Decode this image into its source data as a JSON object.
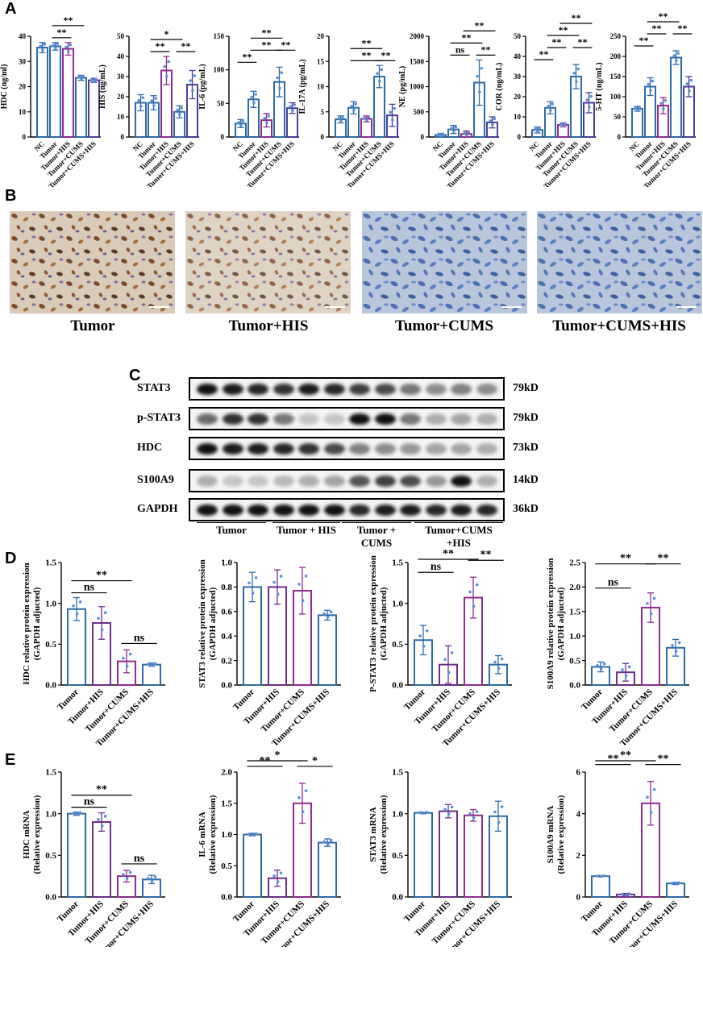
{
  "panels": {
    "A": "A",
    "B": "B",
    "C": "C",
    "D": "D",
    "E": "E"
  },
  "colors": {
    "blue": "#2E6AA6",
    "purple": "#7B2D8E",
    "pink": "#A02B8C",
    "indigo": "#4B3C99",
    "dot": "#5B8ED6"
  },
  "section_A": {
    "groups": [
      "NC",
      "Tumor",
      "Tumor+HIS",
      "Tumor+CUMS",
      "Tumor+CUMS+HIS"
    ],
    "colors": [
      "#2E6AA6",
      "#2E6AA6",
      "#8E2D8E",
      "#2E6AA6",
      "#4B3C99"
    ]
  },
  "section_DE": {
    "groups": [
      "Tumor",
      "Tumor+HIS",
      "Tumor+CUMS",
      "Tumor+CUMS+HIS"
    ],
    "colors": [
      "#2E6AA6",
      "#6B2E8E",
      "#8E2D8E",
      "#2E6AA6"
    ]
  },
  "chart_data": [
    {
      "type": "bar",
      "panel": "A",
      "ylabel": "HDC (ng/ml)",
      "ylim": [
        0,
        40
      ],
      "ticks": [
        0,
        10,
        20,
        30,
        40
      ],
      "values": [
        35.5,
        36,
        35,
        23.5,
        22.5
      ],
      "errors": [
        2,
        1.5,
        2.5,
        1,
        0.8
      ],
      "sig": [
        {
          "a": 1,
          "b": 2,
          "label": "**",
          "level": 1
        },
        {
          "a": 1,
          "b": 3,
          "label": "**",
          "level": 2
        }
      ]
    },
    {
      "type": "bar",
      "panel": "A",
      "ylabel": "HIS (ng/mL)",
      "ylim": [
        0,
        50
      ],
      "ticks": [
        0,
        10,
        20,
        30,
        40,
        50
      ],
      "values": [
        17,
        17,
        33,
        12.5,
        26
      ],
      "errors": [
        4,
        3.5,
        7,
        3,
        7
      ],
      "sig": [
        {
          "a": 1,
          "b": 2,
          "label": "**",
          "level": 1
        },
        {
          "a": 3,
          "b": 4,
          "label": "**",
          "level": 1
        },
        {
          "a": 1,
          "b": 3,
          "label": "*",
          "level": 2
        }
      ]
    },
    {
      "type": "bar",
      "panel": "A",
      "ylabel": "IL-6 (pg/mL)",
      "ylim": [
        0,
        150
      ],
      "ticks": [
        0,
        50,
        100,
        150
      ],
      "values": [
        20,
        56,
        25,
        82,
        43
      ],
      "errors": [
        6,
        12,
        10,
        22,
        8
      ],
      "sig": [
        {
          "a": 0,
          "b": 1,
          "label": "**",
          "level": 1
        },
        {
          "a": 1,
          "b": 3,
          "label": "**",
          "level": 2
        },
        {
          "a": 3,
          "b": 4,
          "label": "**",
          "level": 2
        },
        {
          "a": 1,
          "b": 3,
          "label": "**",
          "level": 3
        }
      ]
    },
    {
      "type": "bar",
      "panel": "A",
      "ylabel": "IL-17A (pg/mL)",
      "ylim": [
        0,
        20
      ],
      "ticks": [
        0,
        5,
        10,
        15,
        20
      ],
      "values": [
        3.5,
        5.8,
        3.6,
        12,
        4.3
      ],
      "errors": [
        0.7,
        1.2,
        0.6,
        2.2,
        2.2
      ],
      "sig": [
        {
          "a": 1,
          "b": 3,
          "label": "**",
          "level": 1
        },
        {
          "a": 3,
          "b": 4,
          "label": "**",
          "level": 1
        },
        {
          "a": 1,
          "b": 3,
          "label": "**",
          "level": 2
        }
      ]
    },
    {
      "type": "bar",
      "panel": "A",
      "ylabel": "NE (pg/mL)",
      "ylim": [
        0,
        2000
      ],
      "ticks": [
        0,
        500,
        1000,
        1500,
        2000
      ],
      "values": [
        40,
        150,
        60,
        1080,
        290
      ],
      "errors": [
        30,
        80,
        60,
        450,
        110
      ],
      "sig": [
        {
          "a": 1,
          "b": 2,
          "label": "ns",
          "level": 1
        },
        {
          "a": 3,
          "b": 4,
          "label": "**",
          "level": 1
        },
        {
          "a": 1,
          "b": 3,
          "label": "**",
          "level": 2
        },
        {
          "a": 2,
          "b": 4,
          "label": "**",
          "level": 3
        }
      ]
    },
    {
      "type": "bar",
      "panel": "A",
      "ylabel": "COR (ng/mL)",
      "ylim": [
        0,
        50
      ],
      "ticks": [
        0,
        10,
        20,
        30,
        40,
        50
      ],
      "values": [
        3.5,
        14.5,
        6,
        30,
        17
      ],
      "errors": [
        1.5,
        3,
        1,
        6,
        5
      ],
      "sig": [
        {
          "a": 0,
          "b": 1,
          "label": "**",
          "level": 1
        },
        {
          "a": 1,
          "b": 2,
          "label": "**",
          "level": 2
        },
        {
          "a": 3,
          "b": 4,
          "label": "**",
          "level": 2
        },
        {
          "a": 1,
          "b": 3,
          "label": "**",
          "level": 3
        },
        {
          "a": 2,
          "b": 4,
          "label": "**",
          "level": 4
        }
      ]
    },
    {
      "type": "bar",
      "panel": "A",
      "ylabel": "5-HT (ng/mL)",
      "ylim": [
        0,
        250
      ],
      "ticks": [
        0,
        50,
        100,
        150,
        200,
        250
      ],
      "values": [
        70,
        125,
        78,
        197,
        125
      ],
      "errors": [
        6,
        22,
        20,
        17,
        25
      ],
      "sig": [
        {
          "a": 0,
          "b": 1,
          "label": "**",
          "level": 1
        },
        {
          "a": 1,
          "b": 2,
          "label": "**",
          "level": 2
        },
        {
          "a": 3,
          "b": 4,
          "label": "**",
          "level": 2
        },
        {
          "a": 1,
          "b": 3,
          "label": "**",
          "level": 3
        }
      ]
    },
    {
      "type": "bar",
      "panel": "D",
      "ylabel": "HDC relative protein expression",
      "ylabel2": "(GAPDH adjucted)",
      "ylim": [
        0,
        1.5
      ],
      "ticks": [
        0.0,
        0.5,
        1.0,
        1.5
      ],
      "values": [
        0.93,
        0.76,
        0.29,
        0.25
      ],
      "errors": [
        0.14,
        0.2,
        0.14,
        0.02
      ],
      "sig": [
        {
          "a": 0,
          "b": 1,
          "label": "ns",
          "level": 1
        },
        {
          "a": 2,
          "b": 3,
          "label": "ns",
          "level": 0
        },
        {
          "a": 0,
          "b": 2,
          "label": "**",
          "level": 2
        }
      ]
    },
    {
      "type": "bar",
      "panel": "D",
      "ylabel": "STAT3 relative protein expression",
      "ylabel2": "(GAPDH adjucted)",
      "ylim": [
        0,
        1.0
      ],
      "ticks": [
        0.0,
        0.2,
        0.4,
        0.6,
        0.8,
        1.0
      ],
      "values": [
        0.8,
        0.8,
        0.77,
        0.57
      ],
      "errors": [
        0.12,
        0.14,
        0.19,
        0.04
      ],
      "sig": []
    },
    {
      "type": "bar",
      "panel": "D",
      "ylabel": "P-STAT3 relative protein expression",
      "ylabel2": "(GAPDH adjucted)",
      "ylim": [
        0,
        1.5
      ],
      "ticks": [
        0.0,
        0.5,
        1.0,
        1.5
      ],
      "values": [
        0.55,
        0.25,
        1.07,
        0.25
      ],
      "errors": [
        0.18,
        0.23,
        0.25,
        0.11
      ],
      "sig": [
        {
          "a": 0,
          "b": 1,
          "label": "ns",
          "level": 1
        },
        {
          "a": 2,
          "b": 3,
          "label": "**",
          "level": 2
        },
        {
          "a": 0,
          "b": 2,
          "label": "**",
          "level": 3
        }
      ]
    },
    {
      "type": "bar",
      "panel": "D",
      "ylabel": "S100A9 relative protein expression",
      "ylabel2": "(GAPDH adjucted)",
      "ylim": [
        0,
        2.5
      ],
      "ticks": [
        0.0,
        0.5,
        1.0,
        1.5,
        2.0,
        2.5
      ],
      "values": [
        0.37,
        0.26,
        1.58,
        0.76
      ],
      "errors": [
        0.1,
        0.18,
        0.3,
        0.17
      ],
      "sig": [
        {
          "a": 0,
          "b": 1,
          "label": "ns",
          "level": 1
        },
        {
          "a": 0,
          "b": 2,
          "label": "**",
          "level": 3
        },
        {
          "a": 2,
          "b": 3,
          "label": "**",
          "level": 3
        }
      ]
    },
    {
      "type": "bar",
      "panel": "E",
      "ylabel": "HDC mRNA",
      "ylabel2": "(Relative expression)",
      "ylim": [
        0,
        1.5
      ],
      "ticks": [
        0.0,
        0.5,
        1.0,
        1.5
      ],
      "values": [
        1.0,
        0.9,
        0.25,
        0.21
      ],
      "errors": [
        0.02,
        0.11,
        0.07,
        0.05
      ],
      "sig": [
        {
          "a": 0,
          "b": 1,
          "label": "ns",
          "level": 1
        },
        {
          "a": 2,
          "b": 3,
          "label": "ns",
          "level": 0
        },
        {
          "a": 0,
          "b": 2,
          "label": "**",
          "level": 2
        }
      ]
    },
    {
      "type": "bar",
      "panel": "E",
      "ylabel": "IL-6 mRNA",
      "ylabel2": "(Relative expression)",
      "ylim": [
        0,
        2.0
      ],
      "ticks": [
        0.0,
        0.5,
        1.0,
        1.5,
        2.0
      ],
      "values": [
        1.0,
        0.3,
        1.5,
        0.87
      ],
      "errors": [
        0.02,
        0.13,
        0.32,
        0.06
      ],
      "sig": [
        {
          "a": 0,
          "b": 1,
          "label": "**",
          "level": 2
        },
        {
          "a": 2,
          "b": 3,
          "label": "*",
          "level": 2
        },
        {
          "a": 0,
          "b": 2,
          "label": "*",
          "level": 3
        }
      ]
    },
    {
      "type": "bar",
      "panel": "E",
      "ylabel": "STAT3 mRNA",
      "ylabel2": "(Relative expression)",
      "ylim": [
        0,
        1.5
      ],
      "ticks": [
        0.0,
        0.5,
        1.0,
        1.5
      ],
      "values": [
        1.01,
        1.03,
        0.98,
        0.97
      ],
      "errors": [
        0.01,
        0.08,
        0.07,
        0.18
      ],
      "sig": []
    },
    {
      "type": "bar",
      "panel": "E",
      "ylabel": "S100A9 mRNA",
      "ylabel2": "(Relative expression)",
      "ylim": [
        0,
        6
      ],
      "ticks": [
        0,
        2,
        4,
        6
      ],
      "values": [
        1.0,
        0.12,
        4.5,
        0.65
      ],
      "errors": [
        0.03,
        0.05,
        1.05,
        0.05
      ],
      "sig": [
        {
          "a": 0,
          "b": 1,
          "label": "**",
          "level": 2
        },
        {
          "a": 2,
          "b": 3,
          "label": "**",
          "level": 2
        },
        {
          "a": 0,
          "b": 2,
          "label": "**",
          "level": 3
        }
      ]
    }
  ],
  "section_B": {
    "captions": [
      "Tumor",
      "Tumor+HIS",
      "Tumor+CUMS",
      "Tumor+CUMS+HIS"
    ]
  },
  "section_C": {
    "rows": [
      {
        "label": "STAT3",
        "kd": "79kD",
        "intensity": [
          1,
          0.95,
          0.9,
          0.85,
          0.95,
          0.9,
          0.8,
          0.75,
          0.55,
          0.45,
          0.5,
          0.45
        ]
      },
      {
        "label": "p-STAT3",
        "kd": "79kD",
        "intensity": [
          0.6,
          0.85,
          0.85,
          0.55,
          0.2,
          0.2,
          1,
          1,
          0.55,
          0.3,
          0.35,
          0.3
        ]
      },
      {
        "label": "HDC",
        "kd": "73kD",
        "intensity": [
          1,
          0.95,
          0.95,
          0.9,
          0.85,
          0.75,
          0.5,
          0.45,
          0.4,
          0.35,
          0.35,
          0.3
        ]
      },
      {
        "label": "S100A9",
        "kd": "14kD",
        "intensity": [
          0.3,
          0.2,
          0.2,
          0.25,
          0.3,
          0.35,
          0.7,
          0.8,
          0.75,
          0.4,
          1,
          0.3
        ]
      },
      {
        "label": "GAPDH",
        "kd": "36kD",
        "intensity": [
          1,
          1,
          1,
          1,
          1,
          1,
          0.9,
          0.95,
          0.95,
          0.9,
          0.95,
          0.9
        ]
      }
    ],
    "groups": [
      "Tumor",
      "Tumor + HIS",
      "Tumor + CUMS",
      "Tumor+CUMS +HIS"
    ]
  }
}
